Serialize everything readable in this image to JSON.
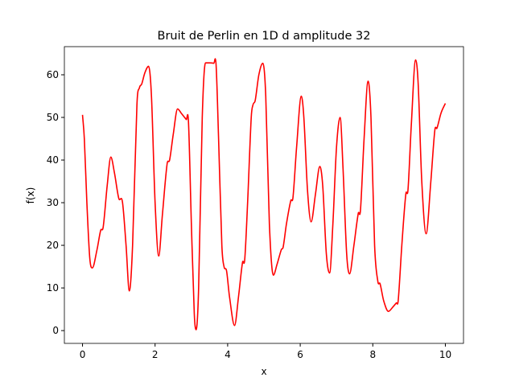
{
  "chart_data": {
    "type": "line",
    "title": "Bruit de Perlin en 1D d amplitude 32",
    "xlabel": "x",
    "ylabel": "f(x)",
    "x": [
      0,
      0.05,
      0.12,
      0.2,
      0.27,
      0.4,
      0.5,
      0.57,
      0.68,
      0.78,
      0.88,
      1.0,
      1.1,
      1.2,
      1.29,
      1.38,
      1.5,
      1.57,
      1.63,
      1.72,
      1.82,
      1.9,
      2.0,
      2.1,
      2.2,
      2.33,
      2.4,
      2.5,
      2.62,
      2.72,
      2.86,
      2.92,
      3.0,
      3.08,
      3.13,
      3.2,
      3.3,
      3.39,
      3.5,
      3.62,
      3.68,
      3.75,
      3.84,
      3.9,
      3.97,
      4.05,
      4.19,
      4.3,
      4.41,
      4.47,
      4.55,
      4.65,
      4.7,
      4.76,
      4.86,
      4.97,
      5.05,
      5.15,
      5.26,
      5.36,
      5.48,
      5.53,
      5.62,
      5.74,
      5.8,
      5.9,
      6.03,
      6.1,
      6.2,
      6.3,
      6.42,
      6.54,
      6.62,
      6.72,
      6.81,
      6.9,
      7.0,
      7.1,
      7.18,
      7.28,
      7.36,
      7.48,
      7.6,
      7.66,
      7.76,
      7.87,
      7.95,
      8.05,
      8.14,
      8.2,
      8.3,
      8.43,
      8.55,
      8.65,
      8.7,
      8.8,
      8.91,
      8.97,
      9.06,
      9.18,
      9.25,
      9.35,
      9.47,
      9.6,
      9.71,
      9.77,
      9.88,
      10
    ],
    "series": [
      {
        "color": "#ff0000",
        "values": [
          50.6,
          45,
          30,
          17,
          14.7,
          19,
          23.5,
          24.3,
          34,
          40.7,
          37,
          31,
          30.2,
          20,
          9.3,
          20,
          53,
          57,
          57.8,
          60.5,
          62,
          55,
          30,
          17.5,
          27,
          39,
          40,
          46,
          52,
          51,
          49.5,
          49,
          25,
          4,
          0.2,
          10,
          50,
          62.8,
          62.8,
          62.7,
          62.5,
          45,
          20,
          15,
          14,
          8,
          1.2,
          8,
          16,
          16.6,
          30,
          50,
          53,
          54,
          60,
          62.7,
          55,
          25,
          13,
          15.5,
          19,
          19.6,
          25,
          30.5,
          31.2,
          43,
          55,
          50,
          33,
          25.5,
          32,
          38.5,
          34,
          18,
          13.5,
          25,
          43,
          50,
          38,
          18,
          13.3,
          20,
          27.5,
          28.2,
          45,
          58.5,
          50,
          20,
          11.5,
          11,
          7,
          4.5,
          5.5,
          6.5,
          7,
          20,
          32,
          33,
          48,
          63.5,
          58,
          35,
          22.7,
          35,
          47,
          47.5,
          51,
          53.3
        ]
      }
    ],
    "xlim": [
      -0.5,
      10.5
    ],
    "ylim": [
      -3.0,
      66.6
    ],
    "xticks": [
      0,
      2,
      4,
      6,
      8,
      10
    ],
    "yticks": [
      0,
      10,
      20,
      30,
      40,
      50,
      60
    ]
  }
}
